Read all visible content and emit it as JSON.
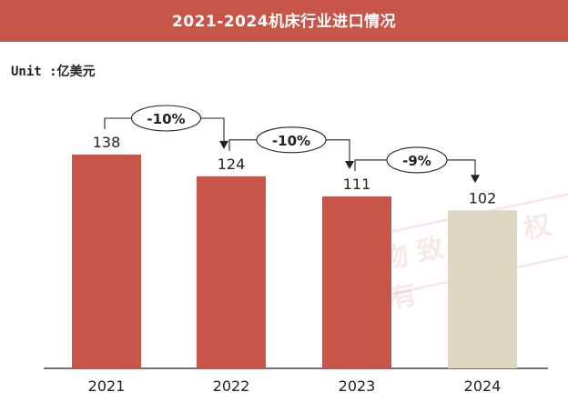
{
  "title": "2021-2024机床行业进口情况",
  "watermark": "格物致胜版权所有",
  "unit_label": "Unit :亿美元",
  "colors": {
    "title_bg": "#c8554a",
    "bar_main": "#c8554a",
    "bar_forecast": "#ddd6c1",
    "text": "#222222"
  },
  "chart_data": {
    "type": "bar",
    "title": "2021-2024机床行业进口情况",
    "unit": "亿美元",
    "categories": [
      "2021",
      "2022",
      "2023",
      "2024"
    ],
    "values": [
      138,
      124,
      111,
      102
    ],
    "ylim": [
      0,
      158
    ],
    "grid": false,
    "annotations": [
      {
        "from": "2021",
        "to": "2022",
        "label": "-10%"
      },
      {
        "from": "2022",
        "to": "2023",
        "label": "-10%"
      },
      {
        "from": "2023",
        "to": "2024",
        "label": "-9%"
      }
    ],
    "highlight": {
      "2024": "forecast-style"
    }
  }
}
